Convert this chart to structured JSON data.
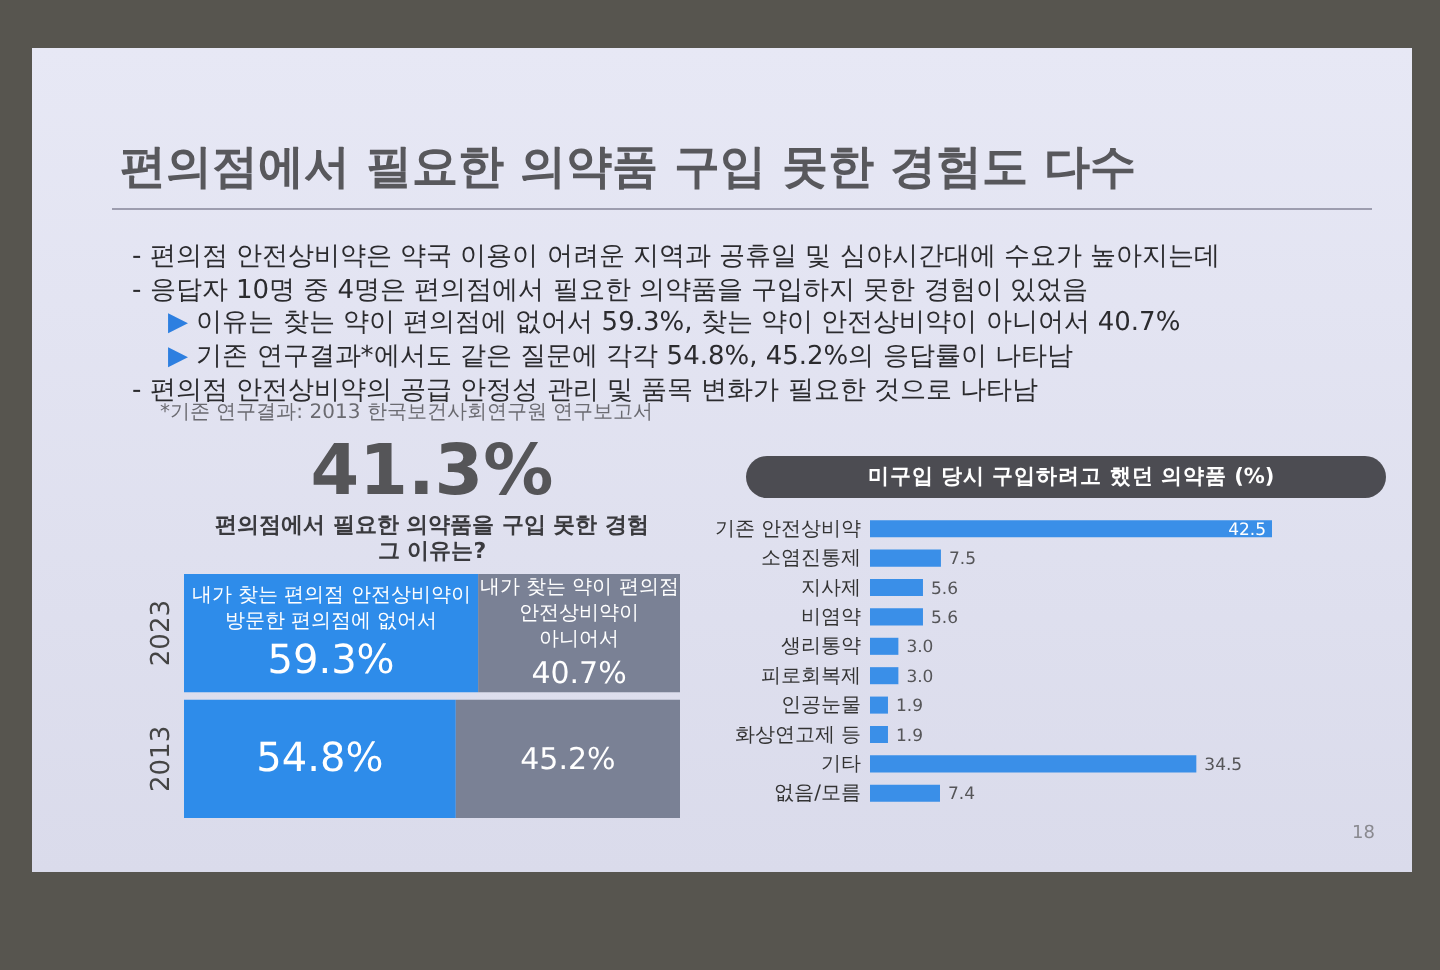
{
  "chart_data": [
    {
      "type": "other",
      "title": "편의점에서 필요한 의약품 구입 못한 경험도 다수",
      "annotations": [
        "- 편의점 안전상비약은 약국 이용이 어려운 지역과 공휴일 및 심야시간대에 수요가 높아지는데",
        "- 응답자 10명 중 4명은 편의점에서 필요한 의약품을 구입하지 못한 경험이 있었음",
        "▶ 이유는 찾는 약이 편의점에 없어서 59.3%, 찾는 약이 안전상비약이 아니어서 40.7%",
        "▶ 기존 연구결과*에서도 같은 질문에 각각 54.8%, 45.2%의 응답률이 나타남",
        "- 편의점 안전상비약의 공급 안정성 관리 및 품목 변화가 필요한 것으로 나타남",
        "*기존 연구결과: 2013 한국보건사회연구원 연구보고서"
      ]
    },
    {
      "type": "bar",
      "orientation": "horizontal",
      "stacked": true,
      "title": "41.3%",
      "subtitle": "편의점에서 필요한 의약품을 구입 못한 경험 그 이유는?",
      "categories": [
        "2023",
        "2013"
      ],
      "series": [
        {
          "name": "내가 찾는 편의점 안전상비약이 방문한 편의점에 없어서",
          "color": "#2e8cea",
          "values": [
            59.3,
            54.8
          ],
          "value_labels": [
            "59.3%",
            "54.8%"
          ]
        },
        {
          "name": "내가 찾는 약이 편의점 안전상비약이 아니어서",
          "color": "#7a8195",
          "values": [
            40.7,
            45.2
          ],
          "value_labels": [
            "40.7%",
            "45.2%"
          ]
        }
      ]
    },
    {
      "type": "bar",
      "orientation": "horizontal",
      "title": "미구입 당시 구입하려고 했던 의약품 (%)",
      "categories": [
        "기존 안전상비약",
        "소염진통제",
        "지사제",
        "비염약",
        "생리통약",
        "피로회복제",
        "인공눈물",
        "화상연고제 등",
        "기타",
        "없음/모름"
      ],
      "values": [
        42.5,
        7.5,
        5.6,
        5.6,
        3.0,
        3.0,
        1.9,
        1.9,
        34.5,
        7.4
      ],
      "value_labels": [
        "42.5",
        "7.5",
        "5.6",
        "5.6",
        "3.0",
        "3.0",
        "1.9",
        "1.9",
        "34.5",
        "7.4"
      ],
      "color": "#3a8fe8",
      "annotations": [
        "18"
      ]
    }
  ]
}
